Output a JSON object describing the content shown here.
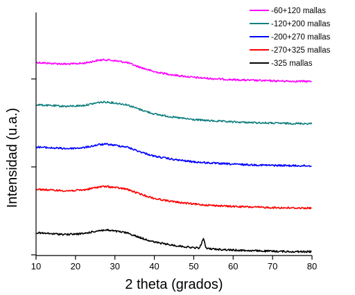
{
  "chart_data": {
    "type": "line",
    "title": "",
    "xlabel": "2 theta (grados)",
    "ylabel": "Intensidad (u.a.)",
    "xlim": [
      10,
      80
    ],
    "x_ticks": [
      10,
      20,
      30,
      40,
      50,
      60,
      70,
      80
    ],
    "y_ticks_labeled": false,
    "y_units": "offset arbitrary units (curves stacked vertically)",
    "legend_position": "top-right",
    "grid": false,
    "series": [
      {
        "name": "-60+120 mallas",
        "color": "#ff00ff",
        "x": [
          10,
          14,
          18,
          22,
          24,
          26,
          28,
          30,
          33,
          36,
          40,
          45,
          50,
          55,
          60,
          65,
          70,
          75,
          80
        ],
        "y": [
          0.16,
          0.1,
          0.06,
          0.11,
          0.2,
          0.3,
          0.32,
          0.26,
          0.16,
          -0.1,
          -0.4,
          -0.6,
          -0.74,
          -0.82,
          -0.88,
          -0.92,
          -0.95,
          -0.97,
          -0.98
        ]
      },
      {
        "name": "-120+200 mallas",
        "color": "#128080",
        "x": [
          10,
          14,
          18,
          22,
          24,
          26,
          28,
          30,
          33,
          36,
          40,
          45,
          50,
          55,
          60,
          65,
          70,
          75,
          80
        ],
        "y": [
          0.16,
          0.1,
          0.06,
          0.11,
          0.2,
          0.3,
          0.32,
          0.26,
          0.16,
          -0.1,
          -0.4,
          -0.6,
          -0.74,
          -0.82,
          -0.88,
          -0.92,
          -0.95,
          -0.97,
          -0.98
        ]
      },
      {
        "name": "-200+270 mallas",
        "color": "#0000ff",
        "x": [
          10,
          14,
          18,
          22,
          24,
          26,
          28,
          30,
          33,
          36,
          40,
          45,
          50,
          55,
          60,
          65,
          70,
          75,
          80
        ],
        "y": [
          0.16,
          0.1,
          0.06,
          0.11,
          0.2,
          0.3,
          0.32,
          0.26,
          0.16,
          -0.1,
          -0.4,
          -0.6,
          -0.74,
          -0.82,
          -0.88,
          -0.92,
          -0.95,
          -0.97,
          -0.98
        ]
      },
      {
        "name": "-270+325 mallas",
        "color": "#ff0000",
        "x": [
          10,
          14,
          18,
          22,
          24,
          26,
          28,
          30,
          33,
          36,
          40,
          45,
          50,
          55,
          60,
          65,
          70,
          75,
          80
        ],
        "y": [
          0.16,
          0.1,
          0.06,
          0.11,
          0.2,
          0.3,
          0.32,
          0.26,
          0.16,
          -0.1,
          -0.4,
          -0.6,
          -0.74,
          -0.82,
          -0.88,
          -0.92,
          -0.95,
          -0.97,
          -0.98
        ]
      },
      {
        "name": "-325 mallas",
        "color": "#000000",
        "x": [
          10,
          14,
          18,
          22,
          24,
          26,
          28,
          30,
          33,
          36,
          40,
          45,
          50,
          51.5,
          52.4,
          53.2,
          55,
          60,
          65,
          70,
          75,
          80
        ],
        "y": [
          0.16,
          0.1,
          0.06,
          0.11,
          0.2,
          0.3,
          0.32,
          0.26,
          0.16,
          -0.1,
          -0.4,
          -0.6,
          -0.74,
          -0.76,
          -0.18,
          -0.78,
          -0.82,
          -0.88,
          -0.92,
          -0.95,
          -0.97,
          -0.98
        ]
      }
    ]
  }
}
